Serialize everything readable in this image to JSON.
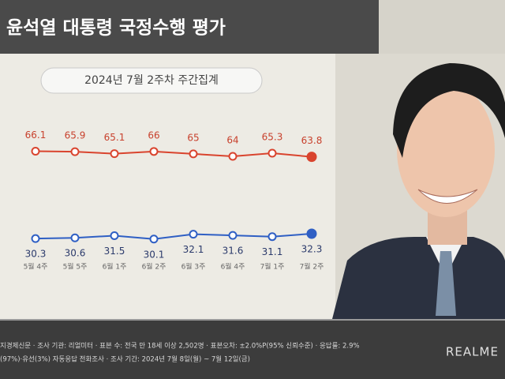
{
  "chart_data": {
    "type": "line",
    "title": "윤석열 대통령 국정수행 평가",
    "subtitle": "2024년 7월 2주차 주간집계",
    "categories": [
      "5월 4주",
      "5월 5주",
      "6월 1주",
      "6월 2주",
      "6월 3주",
      "6월 4주",
      "7월 1주",
      "7월 2주"
    ],
    "series": [
      {
        "color": "#d9442e",
        "values": [
          66.1,
          65.9,
          65.1,
          66.0,
          65.0,
          64.0,
          65.3,
          63.8
        ]
      },
      {
        "color": "#2f5fc4",
        "values": [
          30.3,
          30.6,
          31.5,
          30.1,
          32.1,
          31.6,
          31.1,
          32.3
        ]
      }
    ],
    "ylim": [
      20,
      75
    ],
    "notes": [
      "지경제신문 · 조사 기관: 리얼미터 · 표본 수: 전국 만 18세 이상 2,502명 · 표본오차: ±2.0%P(95% 신뢰수준) · 응답률: 2.9%",
      "(97%)·유선(3%) 자동응답 전화조사 · 조사 기간: 2024년 7월 8일(월) ~ 7월 12일(금)"
    ],
    "logo": "REALME"
  }
}
